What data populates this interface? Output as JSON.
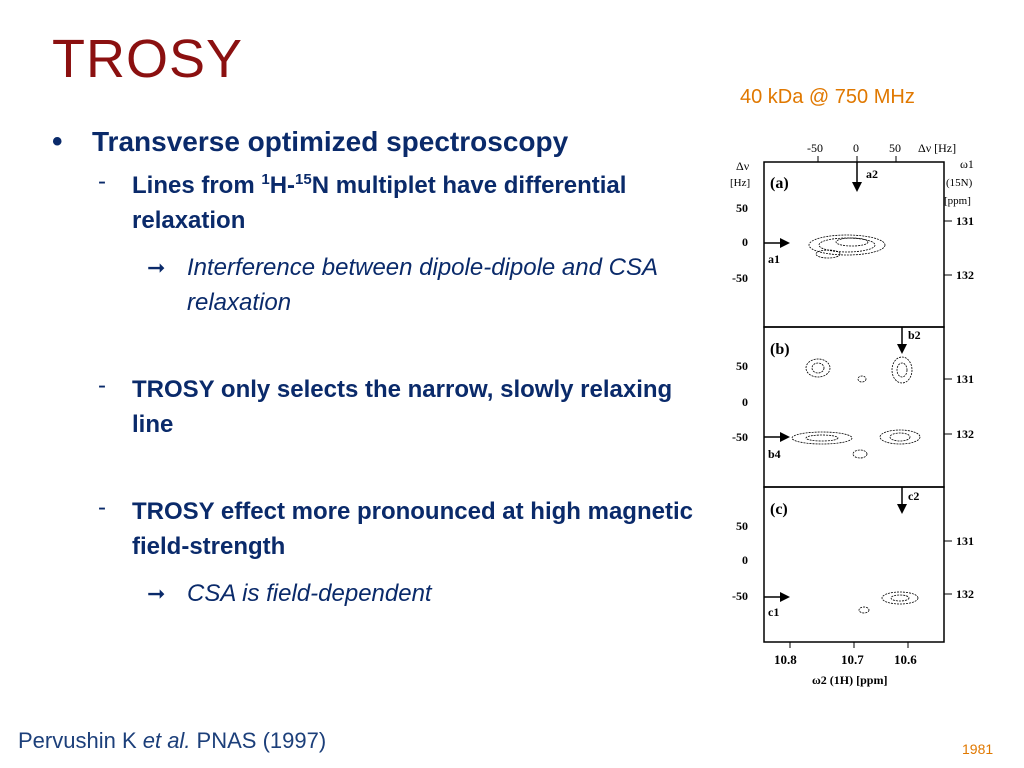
{
  "slide": {
    "title": "TROSY",
    "field_note": "40 kDa @ 750 MHz",
    "bullets": {
      "main": "Transverse optimized spectroscopy",
      "sub1_a": "Lines from ",
      "sub1_sup1": "1",
      "sub1_b": "H-",
      "sub1_sup2": "15",
      "sub1_c": "N multiplet have differential relaxation",
      "sub1_detail": "Interference between dipole-dipole and CSA relaxation",
      "sub2": "TROSY only selects the narrow, slowly relaxing line",
      "sub3": "TROSY effect more pronounced at high magnetic field-strength",
      "sub3_detail": "CSA is field-dependent",
      "dash": "-",
      "bullet_dot": "•",
      "arrow": "➞"
    },
    "citation_a": "Pervushin K ",
    "citation_b": "et al.",
    "citation_c": " PNAS (1997)",
    "page_number": "1981"
  },
  "figure": {
    "top_axis_label": "Δν [Hz]",
    "top_ticks": [
      "-50",
      "0",
      "50"
    ],
    "omega1_label": "ω1",
    "n15_label": "(15N)",
    "ppm_label": "[ppm]",
    "left_axis_top": "Δν",
    "left_axis_unit": "[Hz]",
    "panels": [
      {
        "label": "(a)",
        "arrow_top": "a2",
        "arrow_left": "a1",
        "left_ticks": [
          "50",
          "0",
          "-50"
        ],
        "right_ticks": [
          "131",
          "132"
        ]
      },
      {
        "label": "(b)",
        "arrow_top": "b2",
        "arrow_left": "b4",
        "left_ticks": [
          "50",
          "0",
          "-50"
        ],
        "right_ticks": [
          "131",
          "132"
        ]
      },
      {
        "label": "(c)",
        "arrow_top": "c2",
        "arrow_left": "c1",
        "left_ticks": [
          "50",
          "0",
          "-50"
        ],
        "right_ticks": [
          "131",
          "132"
        ]
      }
    ],
    "bottom_ticks": [
      "10.8",
      "10.7",
      "10.6"
    ],
    "bottom_axis_label": "ω2 (1H) [ppm]"
  }
}
